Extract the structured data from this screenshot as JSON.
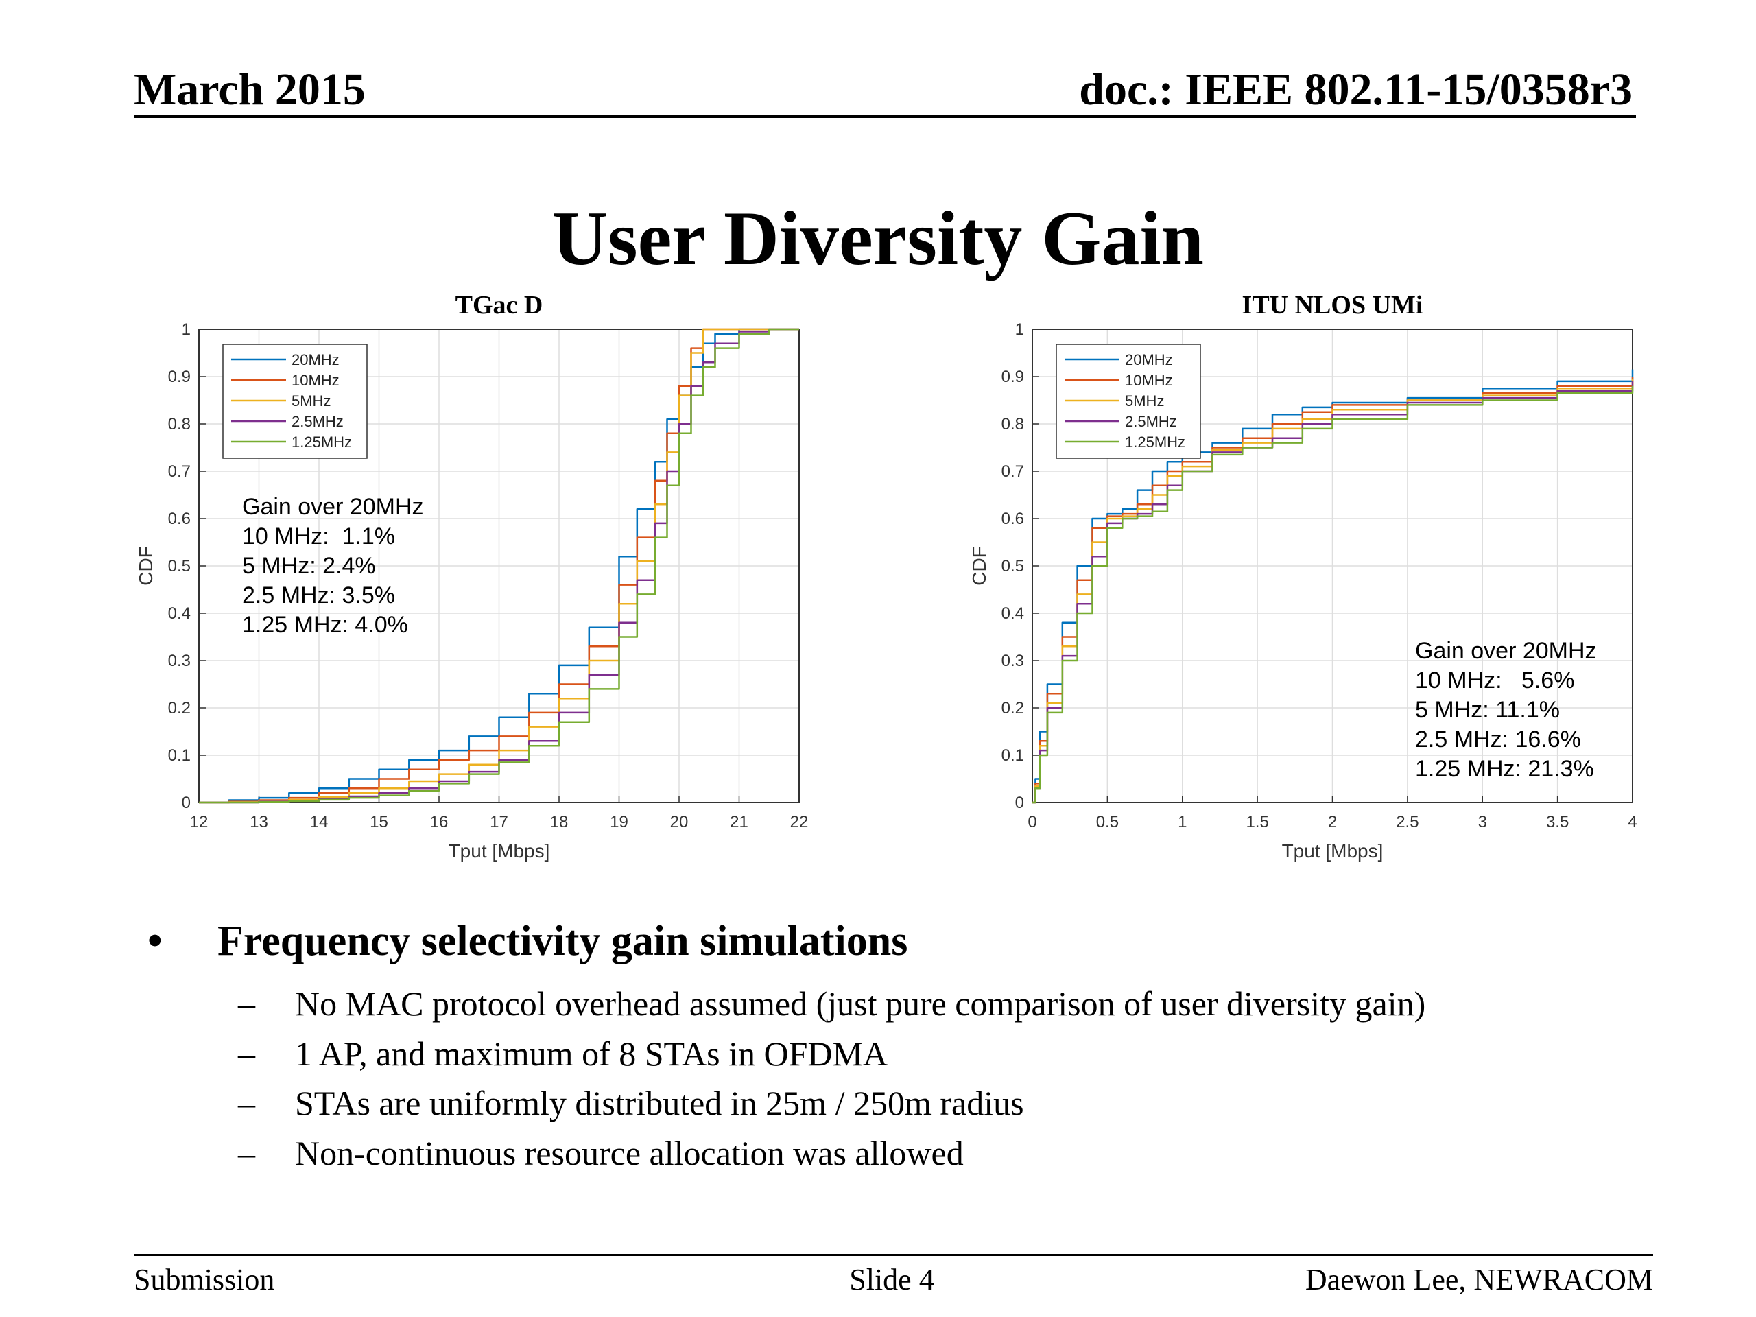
{
  "header": {
    "date": "March 2015",
    "doc": "doc.: IEEE 802.11-15/0358r3"
  },
  "title": "User Diversity Gain",
  "chart_data": [
    {
      "type": "line",
      "title": "TGac D",
      "xlabel": "Tput [Mbps]",
      "ylabel": "CDF",
      "xlim": [
        12,
        22
      ],
      "ylim": [
        0,
        1
      ],
      "xticks": [
        "12",
        "13",
        "14",
        "15",
        "16",
        "17",
        "18",
        "19",
        "20",
        "21",
        "22"
      ],
      "yticks": [
        "0",
        "0.1",
        "0.2",
        "0.3",
        "0.4",
        "0.5",
        "0.6",
        "0.7",
        "0.8",
        "0.9",
        "1"
      ],
      "grid": true,
      "legend_position": "top-left",
      "annotation": [
        "Gain over 20MHz",
        "10 MHz:  1.1%",
        "5 MHz: 2.4%",
        "2.5 MHz: 3.5%",
        "1.25 MHz: 4.0%"
      ],
      "series": [
        {
          "name": "20MHz",
          "color": "#0072bd",
          "x": [
            12,
            12.5,
            13,
            13.5,
            14,
            14.5,
            15,
            15.5,
            16,
            16.5,
            17,
            17.5,
            18,
            18.5,
            19,
            19.3,
            19.6,
            19.8,
            20.0,
            20.2,
            20.4,
            20.6,
            21,
            21.5,
            22
          ],
          "y": [
            0,
            0.005,
            0.01,
            0.02,
            0.03,
            0.05,
            0.07,
            0.09,
            0.11,
            0.14,
            0.18,
            0.23,
            0.29,
            0.37,
            0.52,
            0.62,
            0.72,
            0.81,
            0.86,
            0.92,
            0.97,
            0.99,
            1,
            1,
            1
          ]
        },
        {
          "name": "10MHz",
          "color": "#d95319",
          "x": [
            12,
            12.5,
            13,
            13.5,
            14,
            14.5,
            15,
            15.5,
            16,
            16.5,
            17,
            17.5,
            18,
            18.5,
            19,
            19.3,
            19.6,
            19.8,
            20.0,
            20.2,
            20.4,
            20.6,
            21,
            21.5,
            22
          ],
          "y": [
            0,
            0.002,
            0.005,
            0.01,
            0.02,
            0.03,
            0.05,
            0.07,
            0.09,
            0.11,
            0.14,
            0.19,
            0.25,
            0.33,
            0.46,
            0.56,
            0.68,
            0.78,
            0.88,
            0.96,
            1,
            1,
            1,
            1,
            1
          ]
        },
        {
          "name": "5MHz",
          "color": "#edb120",
          "x": [
            12,
            12.5,
            13,
            13.5,
            14,
            14.5,
            15,
            15.5,
            16,
            16.5,
            17,
            17.5,
            18,
            18.5,
            19,
            19.3,
            19.6,
            19.8,
            20.0,
            20.2,
            20.4,
            20.6,
            21,
            21.5,
            22
          ],
          "y": [
            0,
            0.001,
            0.003,
            0.006,
            0.012,
            0.02,
            0.03,
            0.045,
            0.06,
            0.08,
            0.11,
            0.16,
            0.22,
            0.3,
            0.42,
            0.51,
            0.63,
            0.74,
            0.86,
            0.95,
            1,
            1,
            1,
            1,
            1
          ]
        },
        {
          "name": "2.5MHz",
          "color": "#7e2f8e",
          "x": [
            12,
            12.5,
            13,
            13.5,
            14,
            14.5,
            15,
            15.5,
            16,
            16.5,
            17,
            17.5,
            18,
            18.5,
            19,
            19.3,
            19.6,
            19.8,
            20.0,
            20.2,
            20.4,
            20.6,
            21,
            21.5,
            22
          ],
          "y": [
            0,
            0.0,
            0.002,
            0.004,
            0.008,
            0.013,
            0.02,
            0.03,
            0.045,
            0.065,
            0.09,
            0.13,
            0.19,
            0.27,
            0.38,
            0.47,
            0.59,
            0.7,
            0.8,
            0.88,
            0.93,
            0.97,
            0.995,
            1,
            1
          ]
        },
        {
          "name": "1.25MHz",
          "color": "#77ac30",
          "x": [
            12,
            12.5,
            13,
            13.5,
            14,
            14.5,
            15,
            15.5,
            16,
            16.5,
            17,
            17.5,
            18,
            18.5,
            19,
            19.3,
            19.6,
            19.8,
            20.0,
            20.2,
            20.4,
            20.6,
            21,
            21.5,
            22
          ],
          "y": [
            0,
            0.0,
            0.001,
            0.003,
            0.006,
            0.01,
            0.015,
            0.025,
            0.04,
            0.06,
            0.085,
            0.12,
            0.17,
            0.24,
            0.35,
            0.44,
            0.56,
            0.67,
            0.78,
            0.86,
            0.92,
            0.96,
            0.99,
            1,
            1
          ]
        }
      ]
    },
    {
      "type": "line",
      "title": "ITU NLOS UMi",
      "xlabel": "Tput [Mbps]",
      "ylabel": "CDF",
      "xlim": [
        0,
        4
      ],
      "ylim": [
        0,
        1
      ],
      "xticks": [
        "0",
        "0.5",
        "1",
        "1.5",
        "2",
        "2.5",
        "3",
        "3.5",
        "4"
      ],
      "yticks": [
        "0",
        "0.1",
        "0.2",
        "0.3",
        "0.4",
        "0.5",
        "0.6",
        "0.7",
        "0.8",
        "0.9",
        "1"
      ],
      "grid": true,
      "legend_position": "top-left",
      "annotation": [
        "Gain over 20MHz",
        "10 MHz:   5.6%",
        "5 MHz: 11.1%",
        "2.5 MHz: 16.6%",
        "1.25 MHz: 21.3%"
      ],
      "series": [
        {
          "name": "20MHz",
          "color": "#0072bd",
          "x": [
            0,
            0.02,
            0.05,
            0.1,
            0.2,
            0.3,
            0.4,
            0.5,
            0.6,
            0.7,
            0.8,
            0.9,
            1.0,
            1.2,
            1.4,
            1.6,
            1.8,
            2.0,
            2.5,
            3.0,
            3.5,
            4.0
          ],
          "y": [
            0,
            0.05,
            0.15,
            0.25,
            0.38,
            0.5,
            0.6,
            0.61,
            0.62,
            0.66,
            0.7,
            0.72,
            0.74,
            0.76,
            0.79,
            0.82,
            0.835,
            0.845,
            0.855,
            0.875,
            0.89,
            0.915
          ]
        },
        {
          "name": "10MHz",
          "color": "#d95319",
          "x": [
            0,
            0.02,
            0.05,
            0.1,
            0.2,
            0.3,
            0.4,
            0.5,
            0.6,
            0.7,
            0.8,
            0.9,
            1.0,
            1.2,
            1.4,
            1.6,
            1.8,
            2.0,
            2.5,
            3.0,
            3.5,
            4.0
          ],
          "y": [
            0,
            0.04,
            0.13,
            0.23,
            0.35,
            0.47,
            0.58,
            0.605,
            0.61,
            0.63,
            0.67,
            0.7,
            0.72,
            0.75,
            0.77,
            0.8,
            0.825,
            0.84,
            0.85,
            0.865,
            0.88,
            0.9
          ]
        },
        {
          "name": "5MHz",
          "color": "#edb120",
          "x": [
            0,
            0.02,
            0.05,
            0.1,
            0.2,
            0.3,
            0.4,
            0.5,
            0.6,
            0.7,
            0.8,
            0.9,
            1.0,
            1.2,
            1.4,
            1.6,
            1.8,
            2.0,
            2.5,
            3.0,
            3.5,
            4.0
          ],
          "y": [
            0,
            0.035,
            0.12,
            0.21,
            0.33,
            0.44,
            0.55,
            0.6,
            0.605,
            0.62,
            0.65,
            0.69,
            0.71,
            0.745,
            0.76,
            0.79,
            0.81,
            0.83,
            0.85,
            0.86,
            0.875,
            0.895
          ]
        },
        {
          "name": "2.5MHz",
          "color": "#7e2f8e",
          "x": [
            0,
            0.02,
            0.05,
            0.1,
            0.2,
            0.3,
            0.4,
            0.5,
            0.6,
            0.7,
            0.8,
            0.9,
            1.0,
            1.2,
            1.4,
            1.6,
            1.8,
            2.0,
            2.5,
            3.0,
            3.5,
            4.0
          ],
          "y": [
            0,
            0.03,
            0.11,
            0.2,
            0.31,
            0.42,
            0.52,
            0.59,
            0.6,
            0.61,
            0.63,
            0.67,
            0.7,
            0.74,
            0.75,
            0.77,
            0.8,
            0.82,
            0.845,
            0.855,
            0.87,
            0.89
          ]
        },
        {
          "name": "1.25MHz",
          "color": "#77ac30",
          "x": [
            0,
            0.02,
            0.05,
            0.1,
            0.2,
            0.3,
            0.4,
            0.5,
            0.6,
            0.7,
            0.8,
            0.9,
            1.0,
            1.2,
            1.4,
            1.6,
            1.8,
            2.0,
            2.5,
            3.0,
            3.5,
            4.0
          ],
          "y": [
            0,
            0.03,
            0.1,
            0.19,
            0.3,
            0.4,
            0.5,
            0.58,
            0.6,
            0.605,
            0.615,
            0.66,
            0.7,
            0.735,
            0.75,
            0.76,
            0.79,
            0.81,
            0.84,
            0.85,
            0.865,
            0.88
          ]
        }
      ]
    }
  ],
  "bullets": {
    "main": "Frequency selectivity gain simulations",
    "marker": "•",
    "dash": "–",
    "sub": [
      "No MAC protocol overhead assumed (just pure comparison of user diversity gain)",
      "1 AP, and maximum of 8 STAs in OFDMA",
      "STAs are uniformly distributed in 25m / 250m radius",
      "Non-continuous resource allocation was allowed"
    ]
  },
  "footer": {
    "left": "Submission",
    "center": "Slide 4",
    "right": "Daewon Lee, NEWRACOM"
  }
}
